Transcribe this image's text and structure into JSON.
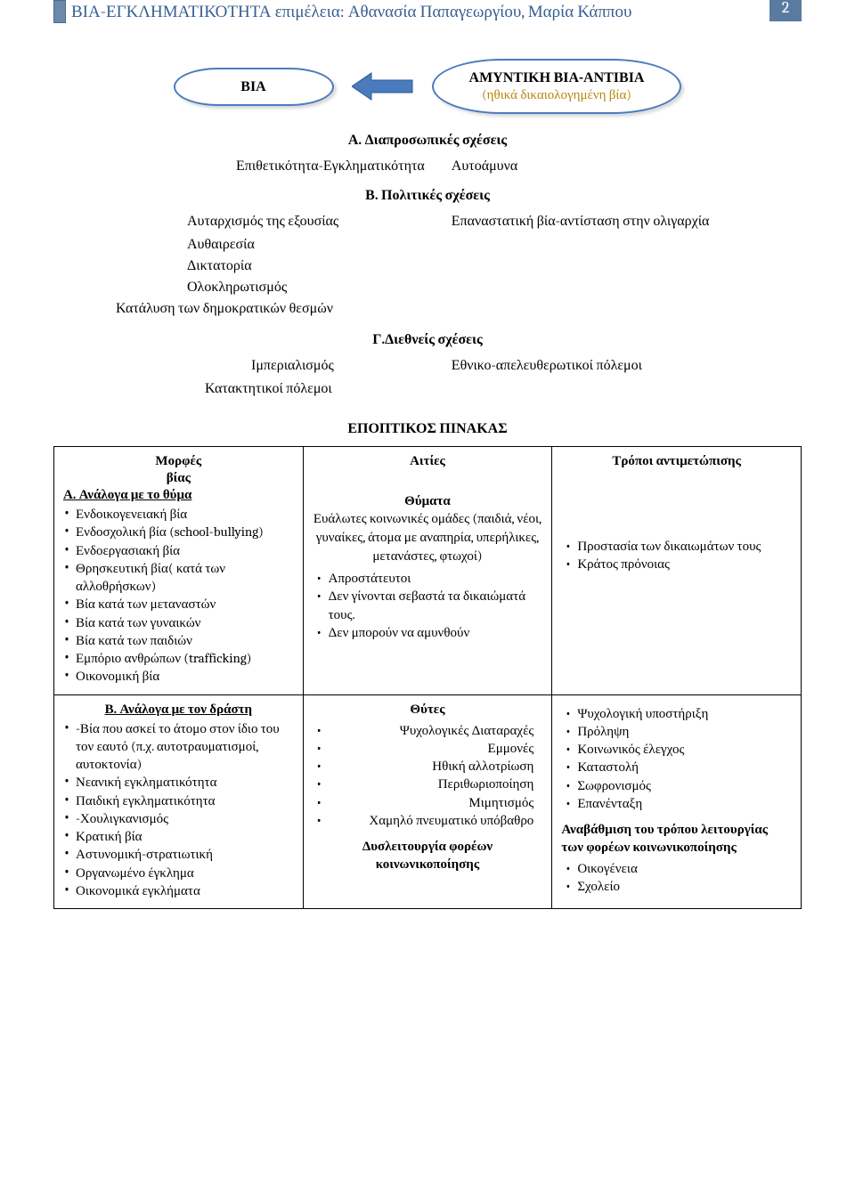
{
  "header": {
    "title": "ΒΙΑ-ΕΓΚΛΗΜΑΤΙΚΟΤΗΤΑ επιμέλεια: Αθανασία Παπαγεωργίου, Μαρία Κάππου",
    "page_number": "2",
    "stripe_color": "#6b8aab",
    "page_box_color": "#5a7ba0"
  },
  "diagram": {
    "left_oval": "ΒΙΑ",
    "right_oval_line1": "ΑΜΥΝΤΙΚΗ ΒΙΑ-ΑΝΤΙΒΙΑ",
    "right_oval_line2": "(ηθικά δικαιολογημένη βία)",
    "arrow_fill": "#4a7bbd",
    "oval_border": "#4a7bbd"
  },
  "sections": {
    "a_title": "Α. Διαπροσωπικές σχέσεις",
    "a_left": "Επιθετικότητα-Εγκληματικότητα",
    "a_right": "Αυτοάμυνα",
    "b_title": "Β. Πολιτικές σχέσεις",
    "b_left_1": "Αυταρχισμός της εξουσίας",
    "b_left_2": "Αυθαιρεσία",
    "b_left_3": "Δικτατορία",
    "b_left_4": "Ολοκληρωτισμός",
    "b_left_5": "Κατάλυση των δημοκρατικών θεσμών",
    "b_right": "Επαναστατική βία-αντίσταση στην ολιγαρχία",
    "c_title": "Γ.Διεθνείς σχέσεις",
    "c_left_1": "Ιμπεριαλισμός",
    "c_left_2": "Κατακτητικοί πόλεμοι",
    "c_right": "Εθνικο-απελευθερωτικοί πόλεμοι"
  },
  "table_title": "ΕΠΟΠΤΙΚΟΣ ΠΙΝΑΚΑΣ",
  "table": {
    "headers": {
      "c1": "Μορφές\nβίας",
      "c2": "Αιτίες",
      "c3": "Τρόποι αντιμετώπισης"
    },
    "row1": {
      "c1_title": "Α. Ανάλογα με το θύμα",
      "c1_items": [
        "Ενδοικογενειακή βία",
        "Ενδοσχολική βία (school-bullying)",
        "Ενδοεργασιακή βία",
        "Θρησκευτική βία( κατά των αλλοθρήσκων)",
        "Βία κατά των μεταναστών",
        "Βία κατά των γυναικών",
        "Βία κατά των παιδιών",
        "Εμπόριο ανθρώπων (trafficking)",
        "Οικονομική βία"
      ],
      "c2_title": "Θύματα",
      "c2_text": "Ευάλωτες κοινωνικές ομάδες (παιδιά, νέοι, γυναίκες, άτομα με αναπηρία, υπερήλικες, μετανάστες, φτωχοί)",
      "c2_items": [
        "Απροστάτευτοι",
        "Δεν γίνονται σεβαστά τα δικαιώματά τους.",
        "Δεν μπορούν να αμυνθούν"
      ],
      "c3_items": [
        "Προστασία των δικαιωμάτων τους",
        "Κράτος πρόνοιας"
      ]
    },
    "row2": {
      "c1_title": "Β. Ανάλογα με τον δράστη",
      "c1_items": [
        "-Βία που ασκεί το άτομο στον ίδιο του τον εαυτό (π.χ. αυτοτραυματισμοί, αυτοκτονία)",
        "Νεανική εγκληματικότητα",
        "Παιδική εγκληματικότητα",
        "-Χουλιγκανισμός",
        "Κρατική βία",
        "Αστυνομική-στρατιωτική",
        "Οργανωμένο έγκλημα",
        "Οικονομικά εγκλήματα"
      ],
      "c2_title": "Θύτες",
      "c2_items": [
        "Ψυχολογικές Διαταραχές",
        "Εμμονές",
        "Ηθική αλλοτρίωση",
        "Περιθωριοποίηση",
        "Μιμητισμός",
        "Χαμηλό πνευματικό υπόβαθρο"
      ],
      "c2_bold": "Δυσλειτουργία φορέων κοινωνικοποίησης",
      "c3_items": [
        "Ψυχολογική υποστήριξη",
        "Πρόληψη",
        "Κοινωνικός έλεγχος",
        "Καταστολή",
        "Σωφρονισμός",
        "Επανένταξη"
      ],
      "c3_bold": "Αναβάθμιση του τρόπου λειτουργίας των φορέων κοινωνικοποίησης",
      "c3_sub_items": [
        "Οικογένεια",
        "Σχολείο"
      ]
    }
  }
}
